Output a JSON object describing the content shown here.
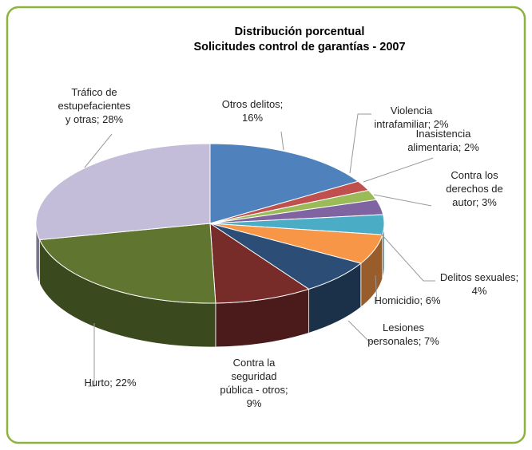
{
  "chart_data": {
    "type": "pie3d",
    "title": [
      "Distribución porcentual",
      "Solicitudes  control de garantías - 2007"
    ],
    "values": [
      16,
      2,
      2,
      3,
      4,
      6,
      7,
      9,
      22,
      28
    ],
    "value_labels": [
      "Otros delitos;\n16%",
      "Violencia\nintrafamiliar; 2%",
      "Inasistencia\nalimentaria; 2%",
      "Contra los\nderechos de\nautor; 3%",
      "Delitos sexuales;\n4%",
      "Homicidio; 6%",
      "Lesiones\npersonales; 7%",
      "Contra la\nseguridad\npública - otros;\n9%",
      "Hurto; 22%",
      "Tráfico de\nestupefacientes\ny otras; 28%"
    ],
    "colors": [
      "#4f81bd",
      "#c0504d",
      "#9bbb59",
      "#8064a2",
      "#4bacc6",
      "#f79646",
      "#2c4d75",
      "#772c2a",
      "#5f7530",
      "#c4bdd9"
    ]
  }
}
